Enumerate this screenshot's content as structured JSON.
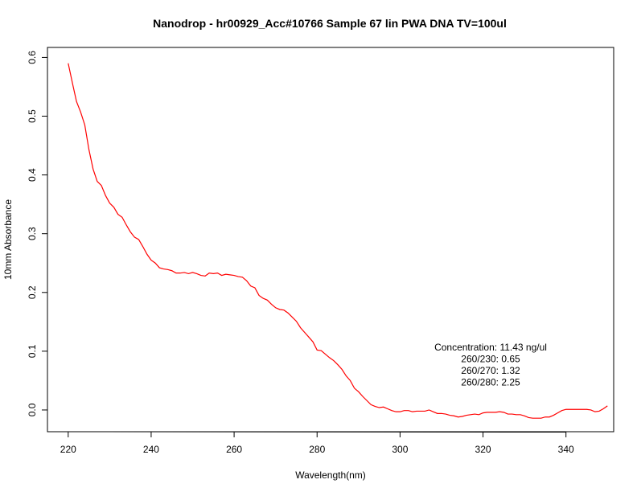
{
  "chart_data": {
    "type": "line",
    "title": "Nanodrop - hr00929_Acc#10766 Sample 67 lin PWA DNA  TV=100ul",
    "xlabel": "Wavelength(nm)",
    "ylabel": "10mm Absorbance",
    "xlim": [
      215,
      351.5
    ],
    "ylim": [
      -0.037,
      0.617
    ],
    "xticks": [
      220,
      240,
      260,
      280,
      300,
      320,
      340
    ],
    "xtick_labels": [
      "220",
      "240",
      "260",
      "280",
      "300",
      "320",
      "340"
    ],
    "yticks": [
      0.0,
      0.1,
      0.2,
      0.3,
      0.4,
      0.5,
      0.6
    ],
    "ytick_labels": [
      "0.0",
      "0.1",
      "0.2",
      "0.3",
      "0.4",
      "0.5",
      "0.6"
    ],
    "grid": false,
    "series": [
      {
        "color": "#ff0000",
        "x": [
          220,
          221,
          222,
          223,
          224,
          225,
          226,
          227,
          228,
          229,
          230,
          231,
          232,
          233,
          234,
          235,
          236,
          237,
          238,
          239,
          240,
          241,
          242,
          243,
          244,
          245,
          246,
          247,
          248,
          249,
          250,
          251,
          252,
          253,
          254,
          255,
          256,
          257,
          258,
          259,
          260,
          261,
          262,
          263,
          264,
          265,
          266,
          267,
          268,
          269,
          270,
          271,
          272,
          273,
          274,
          275,
          276,
          277,
          278,
          279,
          280,
          281,
          282,
          283,
          284,
          285,
          286,
          287,
          288,
          289,
          290,
          291,
          292,
          293,
          294,
          295,
          296,
          297,
          298,
          299,
          300,
          301,
          302,
          303,
          304,
          305,
          306,
          307,
          308,
          309,
          310,
          311,
          312,
          313,
          314,
          315,
          316,
          317,
          318,
          319,
          320,
          321,
          322,
          323,
          324,
          325,
          326,
          327,
          328,
          329,
          330,
          331,
          332,
          333,
          334,
          335,
          336,
          337,
          338,
          339,
          340,
          341,
          342,
          343,
          344,
          345,
          346,
          347,
          348,
          349,
          350
        ],
        "y": [
          0.59,
          0.557,
          0.525,
          0.507,
          0.485,
          0.443,
          0.41,
          0.389,
          0.382,
          0.365,
          0.352,
          0.345,
          0.333,
          0.328,
          0.315,
          0.303,
          0.294,
          0.29,
          0.278,
          0.265,
          0.255,
          0.25,
          0.242,
          0.24,
          0.239,
          0.237,
          0.233,
          0.233,
          0.234,
          0.232,
          0.234,
          0.232,
          0.229,
          0.228,
          0.233,
          0.232,
          0.233,
          0.229,
          0.231,
          0.23,
          0.229,
          0.227,
          0.226,
          0.22,
          0.211,
          0.208,
          0.195,
          0.19,
          0.187,
          0.18,
          0.174,
          0.171,
          0.17,
          0.165,
          0.158,
          0.151,
          0.14,
          0.132,
          0.124,
          0.116,
          0.102,
          0.101,
          0.095,
          0.089,
          0.084,
          0.077,
          0.069,
          0.058,
          0.05,
          0.037,
          0.031,
          0.023,
          0.016,
          0.009,
          0.006,
          0.004,
          0.005,
          0.002,
          -0.001,
          -0.003,
          -0.003,
          -0.001,
          -0.001,
          -0.003,
          -0.002,
          -0.002,
          -0.002,
          0.0,
          -0.003,
          -0.006,
          -0.006,
          -0.007,
          -0.009,
          -0.01,
          -0.012,
          -0.011,
          -0.009,
          -0.008,
          -0.007,
          -0.008,
          -0.005,
          -0.004,
          -0.004,
          -0.004,
          -0.003,
          -0.004,
          -0.007,
          -0.007,
          -0.008,
          -0.008,
          -0.01,
          -0.013,
          -0.014,
          -0.014,
          -0.014,
          -0.012,
          -0.012,
          -0.009,
          -0.005,
          -0.001,
          0.001,
          0.001,
          0.001,
          0.001,
          0.001,
          0.001,
          0.0,
          -0.003,
          -0.002,
          0.002,
          0.007
        ]
      }
    ],
    "annotations": [
      "Concentration: 11.43 ng/ul",
      "260/230: 0.65",
      "260/270: 1.32",
      "260/280: 2.25"
    ]
  }
}
